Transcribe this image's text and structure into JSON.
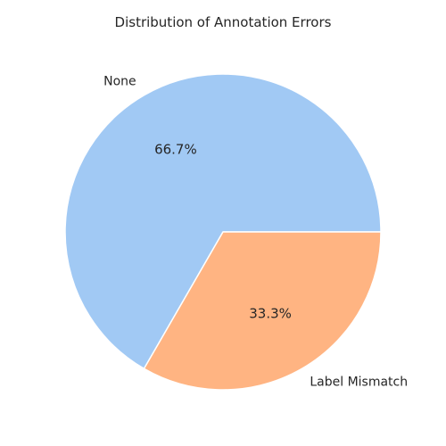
{
  "chart_data": {
    "type": "pie",
    "title": "Distribution of Annotation Errors",
    "categories": [
      "None",
      "Label Mismatch"
    ],
    "values": [
      2,
      1
    ],
    "percent_labels": [
      "66.7%",
      "33.3%"
    ],
    "colors": [
      "#a1c9f4",
      "#ffb482"
    ],
    "start_angle_deg": 0,
    "direction": "counterclockwise"
  }
}
